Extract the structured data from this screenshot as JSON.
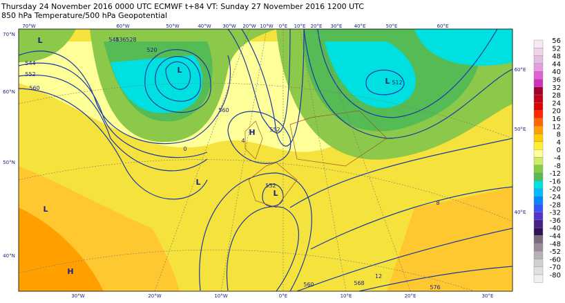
{
  "header": {
    "line1": "Thursday 24 November 2016 0000 UTC  ECMWF  t+84  VT: Sunday 27 November 2016 1200 UTC",
    "line2": "850 hPa Temperature/500 hPa Geopotential"
  },
  "map": {
    "lon_labels_top": [
      "70°W",
      "60°W",
      "50°W",
      "40°W",
      "30°W",
      "20°W",
      "10°W",
      "0°E",
      "10°E",
      "20°E",
      "30°E",
      "40°E",
      "50°E",
      "60°E"
    ],
    "lon_labels_bottom": [
      "30°W",
      "20°W",
      "10°W",
      "0°E",
      "10°E",
      "20°E",
      "30°E"
    ],
    "lat_labels_left": [
      "70°N",
      "60°N",
      "50°N",
      "40°N"
    ],
    "lat_labels_right": [
      "60°E",
      "50°E",
      "40°E"
    ],
    "pressure_centres": [
      "L",
      "L",
      "H",
      "L",
      "L",
      "L",
      "H",
      "L"
    ],
    "contour_labels": [
      "544",
      "552",
      "560",
      "520",
      "528",
      "536",
      "544",
      "512",
      "552",
      "560",
      "552",
      "560",
      "568",
      "576",
      "0",
      "4",
      "8",
      "12"
    ]
  },
  "legend": {
    "labels": [
      56,
      52,
      48,
      44,
      40,
      36,
      32,
      28,
      24,
      20,
      16,
      12,
      8,
      4,
      0,
      -4,
      -8,
      -12,
      -16,
      -20,
      -24,
      -28,
      -32,
      -36,
      -40,
      -44,
      -48,
      -52,
      -60,
      -70,
      -80
    ],
    "colors": [
      "#f7e9f4",
      "#efd3ea",
      "#e6bde0",
      "#e89ce0",
      "#e060d8",
      "#d030c0",
      "#a00030",
      "#c00018",
      "#e00000",
      "#ff2800",
      "#ff6600",
      "#ffa000",
      "#ffcc00",
      "#ffee33",
      "#ffff99",
      "#ccee66",
      "#88cc44",
      "#55bb55",
      "#00e0e0",
      "#00bbff",
      "#0088ff",
      "#3355ff",
      "#5533cc",
      "#442288",
      "#331155",
      "#7a6a7a",
      "#9a8c9a",
      "#b8b0b8",
      "#d0d0d0",
      "#e0e0e0",
      "#f0f0f0"
    ]
  }
}
